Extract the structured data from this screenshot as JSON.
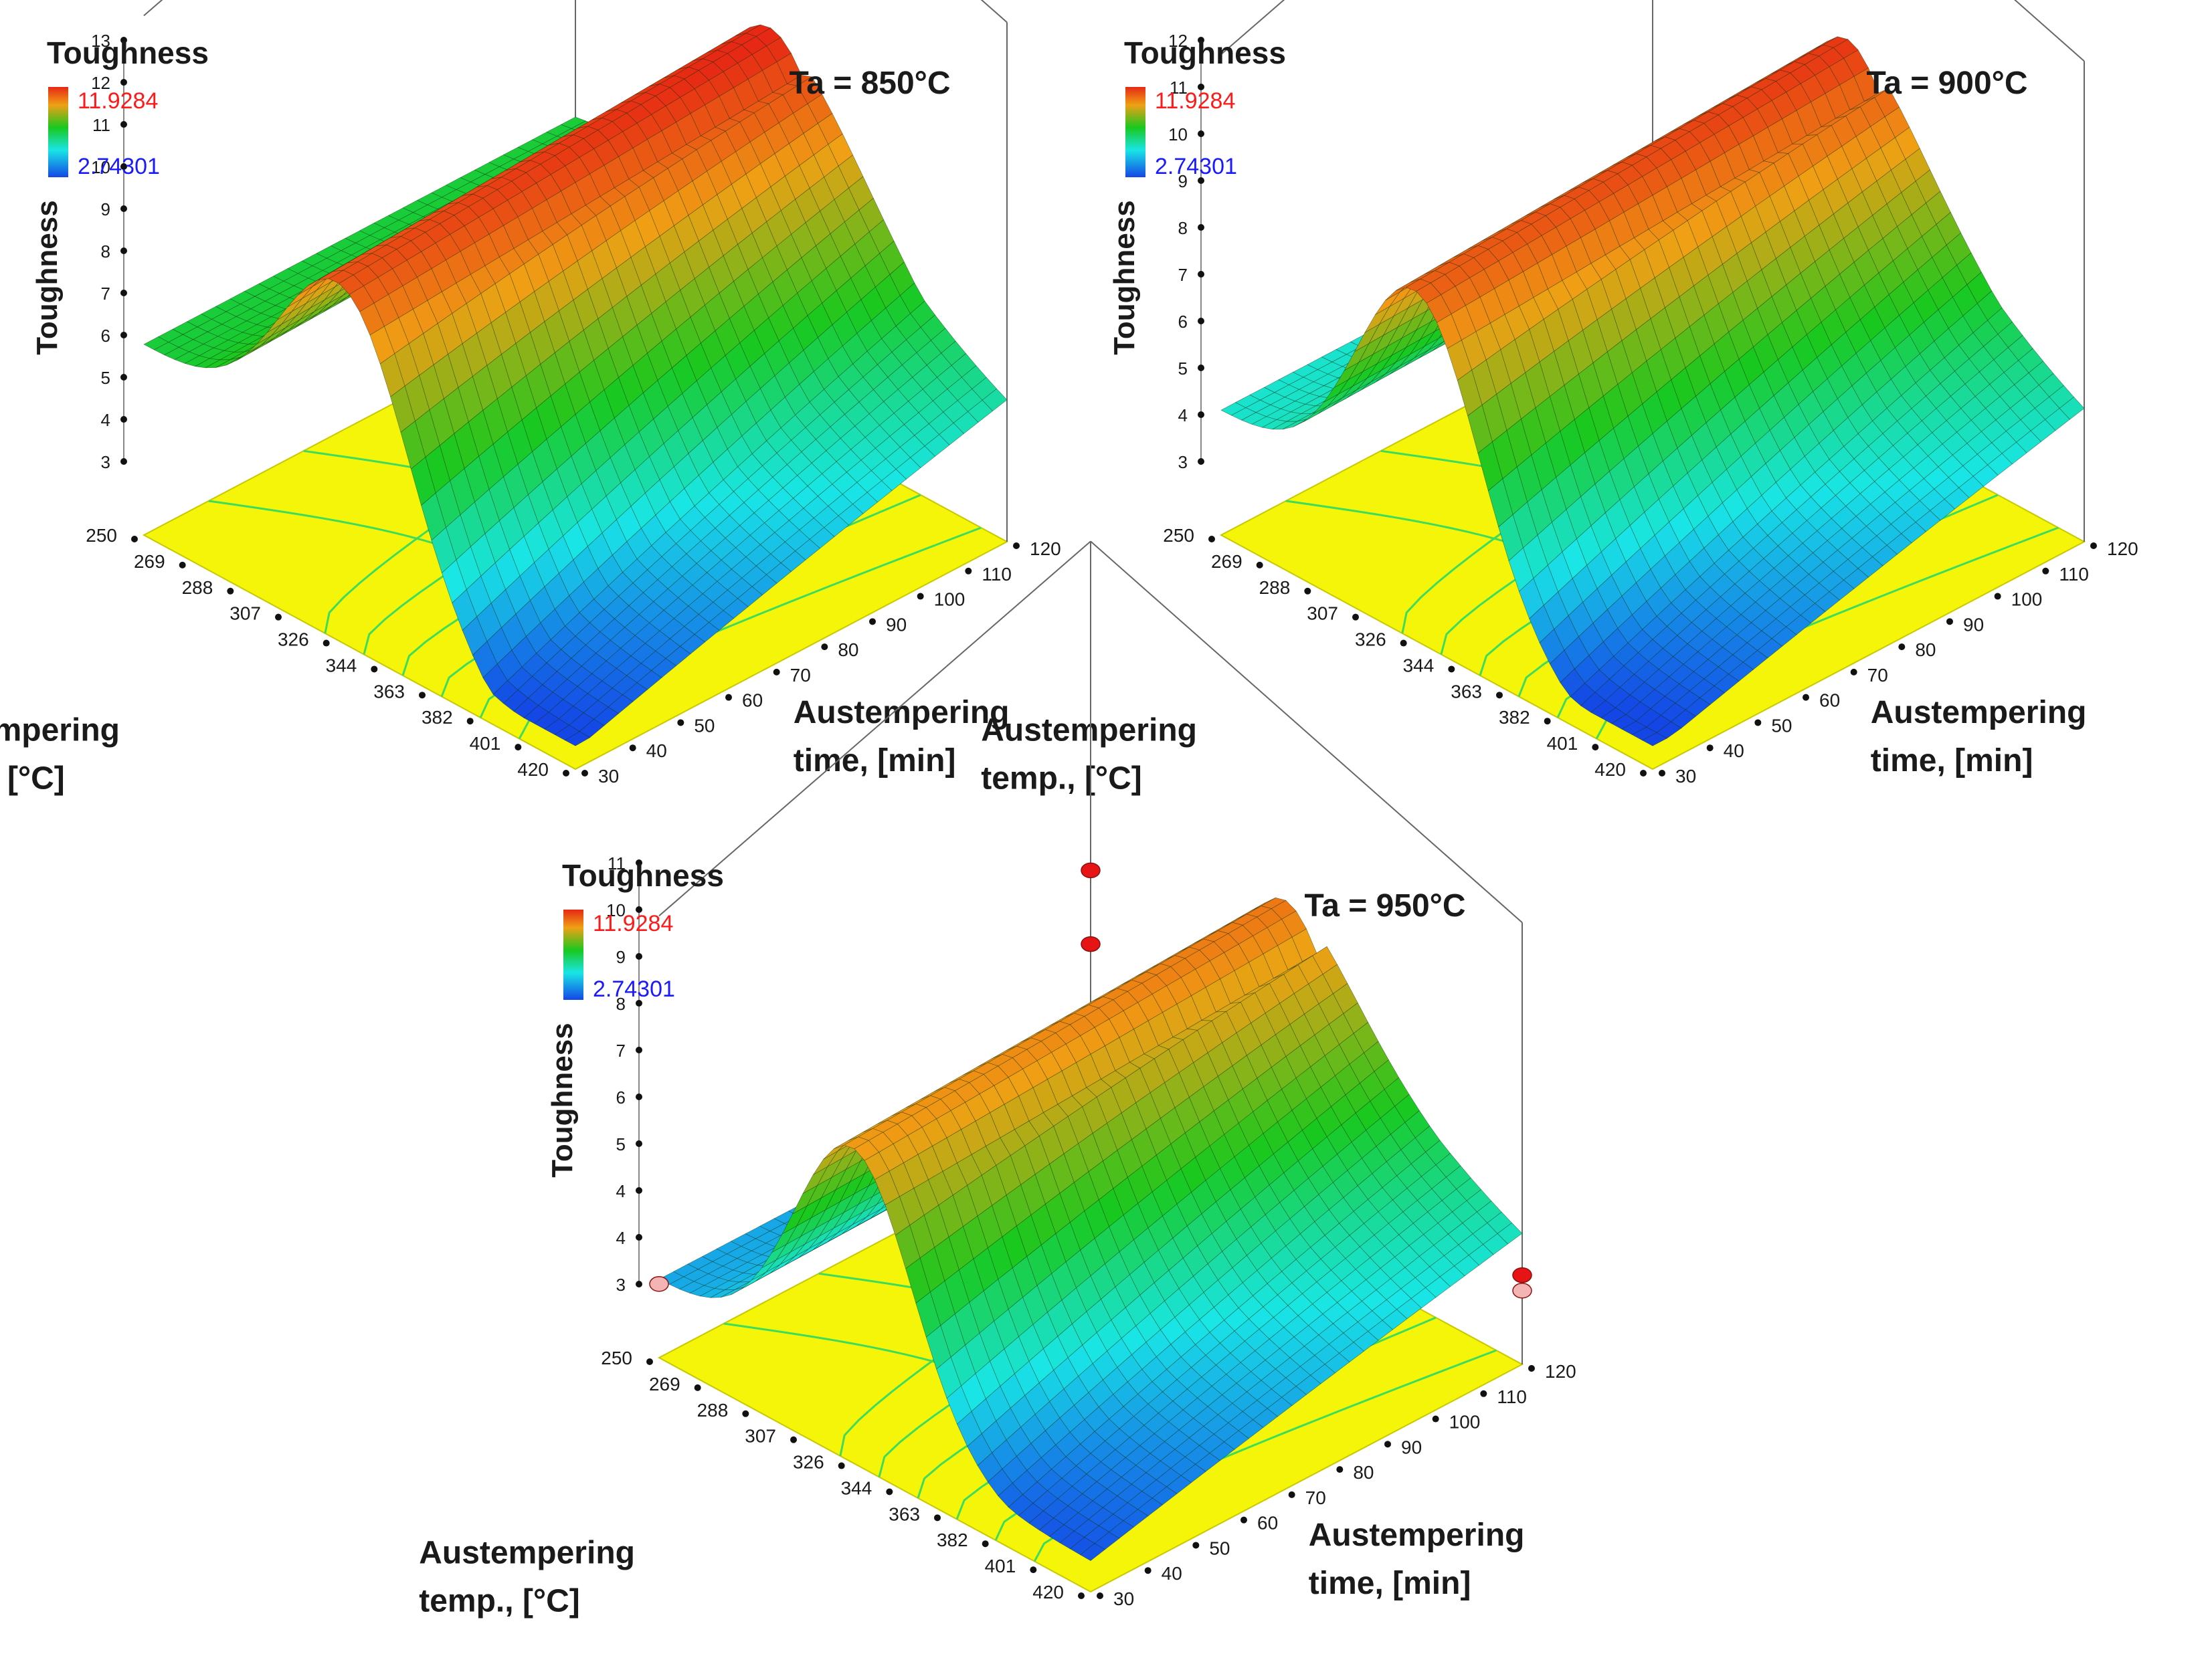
{
  "figure": {
    "colorbar_title": "Toughness",
    "colorbar_max": "11.9284",
    "colorbar_min": "2.74301",
    "colors": {
      "low": "#1446e6",
      "mid_low": "#19e6e6",
      "mid": "#19c81e",
      "high": "#f0a014",
      "max": "#e62814",
      "floor": "#f5f50a",
      "contour": "#3ddc5a"
    }
  },
  "chart_data": [
    {
      "type": "surface3d",
      "title": "Ta = 850°C",
      "zlabel": "Toughness",
      "xlabel": [
        "Austempering",
        "temp., [°C]"
      ],
      "ylabel": [
        "Austempering",
        "time, [min]"
      ],
      "x_ticks": [
        "250",
        "269",
        "288",
        "307",
        "326",
        "344",
        "363",
        "382",
        "401",
        "420"
      ],
      "y_ticks": [
        "30",
        "40",
        "50",
        "60",
        "70",
        "80",
        "90",
        "100",
        "110",
        "120"
      ],
      "z_ticks": [
        "3",
        "4",
        "5",
        "6",
        "7",
        "8",
        "9",
        "10",
        "11",
        "12",
        "13"
      ],
      "xlim": [
        250,
        420
      ],
      "ylim": [
        30,
        120
      ],
      "zlim": [
        3,
        13
      ],
      "colorbar": {
        "title": "Toughness",
        "max": "11.9284",
        "min": "2.74301"
      },
      "surface": {
        "corner_250_30": 7,
        "ridge_temp": 326,
        "ridge_peak": 11.9,
        "high_temp_low": 3,
        "time_effect": 1.6
      }
    },
    {
      "type": "surface3d",
      "title": "Ta = 900°C",
      "zlabel": "Toughness",
      "xlabel": [
        "Austempering",
        "temp., [°C]"
      ],
      "ylabel": [
        "Austempering",
        "time, [min]"
      ],
      "x_ticks": [
        "250",
        "269",
        "288",
        "307",
        "326",
        "344",
        "363",
        "382",
        "401",
        "420"
      ],
      "y_ticks": [
        "30",
        "40",
        "50",
        "60",
        "70",
        "80",
        "90",
        "100",
        "110",
        "120"
      ],
      "z_ticks": [
        "3",
        "4",
        "5",
        "6",
        "7",
        "8",
        "9",
        "10",
        "11",
        "12"
      ],
      "xlim": [
        250,
        420
      ],
      "ylim": [
        30,
        120
      ],
      "zlim": [
        3,
        12
      ],
      "colorbar": {
        "title": "Toughness",
        "max": "11.9284",
        "min": "2.74301"
      },
      "surface": {
        "corner_250_30": 5.3,
        "ridge_temp": 326,
        "ridge_peak": 11.8,
        "high_temp_low": 2.9,
        "time_effect": 1.4
      }
    },
    {
      "type": "surface3d",
      "title": "Ta = 950°C",
      "zlabel": "Toughness",
      "xlabel": [
        "Austempering",
        "temp., [°C]"
      ],
      "ylabel": [
        "Austempering",
        "time, [min]"
      ],
      "x_ticks": [
        "250",
        "269",
        "288",
        "307",
        "326",
        "344",
        "363",
        "382",
        "401",
        "420"
      ],
      "y_ticks": [
        "30",
        "40",
        "50",
        "60",
        "70",
        "80",
        "90",
        "100",
        "110",
        "120"
      ],
      "z_ticks": [
        "3",
        "4",
        "4",
        "5",
        "6",
        "7",
        "8",
        "9",
        "10",
        "11"
      ],
      "xlim": [
        250,
        420
      ],
      "ylim": [
        30,
        120
      ],
      "zlim": [
        3,
        11
      ],
      "colorbar": {
        "title": "Toughness",
        "max": "11.9284",
        "min": "2.74301"
      },
      "surface": {
        "corner_250_30": 4.1,
        "ridge_temp": 326,
        "ridge_peak": 10.9,
        "high_temp_low": 3.2,
        "time_effect": 1.2
      },
      "markers": [
        {
          "temp": 250,
          "time": 30,
          "toughness": 4.0,
          "color": "#f5b4b4"
        },
        {
          "temp": 250,
          "time": 120,
          "toughness": 8.8,
          "color": "#e61414"
        },
        {
          "temp": 250,
          "time": 120,
          "toughness": 6.9,
          "color": "#e61414"
        },
        {
          "temp": 420,
          "time": 120,
          "toughness": 4.4,
          "color": "#e61414"
        },
        {
          "temp": 420,
          "time": 120,
          "toughness": 4.0,
          "color": "#f5b4b4"
        }
      ]
    }
  ]
}
